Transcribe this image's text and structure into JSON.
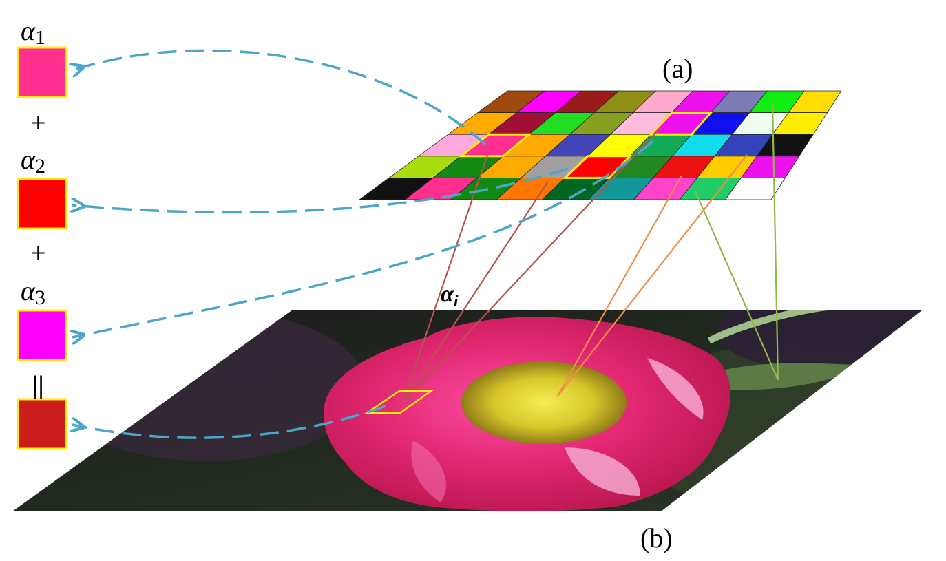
{
  "labels": {
    "palette_label": "(a)",
    "image_label": "(b)",
    "alpha_symbol": "α",
    "alpha_i_sub": "i",
    "plus": "+",
    "equals": "||"
  },
  "coefficients": [
    {
      "symbol": "α",
      "sub": "1",
      "color": "#ff2e8f"
    },
    {
      "symbol": "α",
      "sub": "2",
      "color": "#ff0000"
    },
    {
      "symbol": "α",
      "sub": "3",
      "color": "#ff00ff"
    }
  ],
  "result": {
    "color": "#cc1c1c"
  },
  "colors": {
    "box_border": "#ffee00",
    "dashed_arrow": "#4ba6c8",
    "line_red": "#b5544c",
    "line_orange": "#ec8f4a",
    "line_green": "#92b74b",
    "highlight": "#ffee00"
  },
  "palette": {
    "rows": [
      [
        "#a04a10",
        "#ff00ff",
        "#9b1b1b",
        "#8f8f14",
        "#ffaacc",
        "#ee11ee",
        "#7b7bb5",
        "#11ee11",
        "#ffdd00"
      ],
      [
        "#ffaa00",
        "#a01035",
        "#22dd22",
        "#88a020",
        "#ffbbdd",
        "#ee11ee",
        "#1010ee",
        "#eefdf0",
        "#ffee00"
      ],
      [
        "#ffaadd",
        "#ff2e8f",
        "#ffaa00",
        "#4444bb",
        "#ffff00",
        "#11aa55",
        "#11ddee",
        "#3344bb",
        "#111111"
      ],
      [
        "#aadd11",
        "#118811",
        "#ffaa00",
        "#a0a0a0",
        "#ff0000",
        "#228822",
        "#ee1111",
        "#ffcc00",
        "#ee11ee"
      ],
      [
        "#111111",
        "#ff2e8f",
        "#118811",
        "#ff7700",
        "#006622",
        "#119999",
        "#ff44cc",
        "#22cc66",
        "#ffffff"
      ]
    ]
  }
}
